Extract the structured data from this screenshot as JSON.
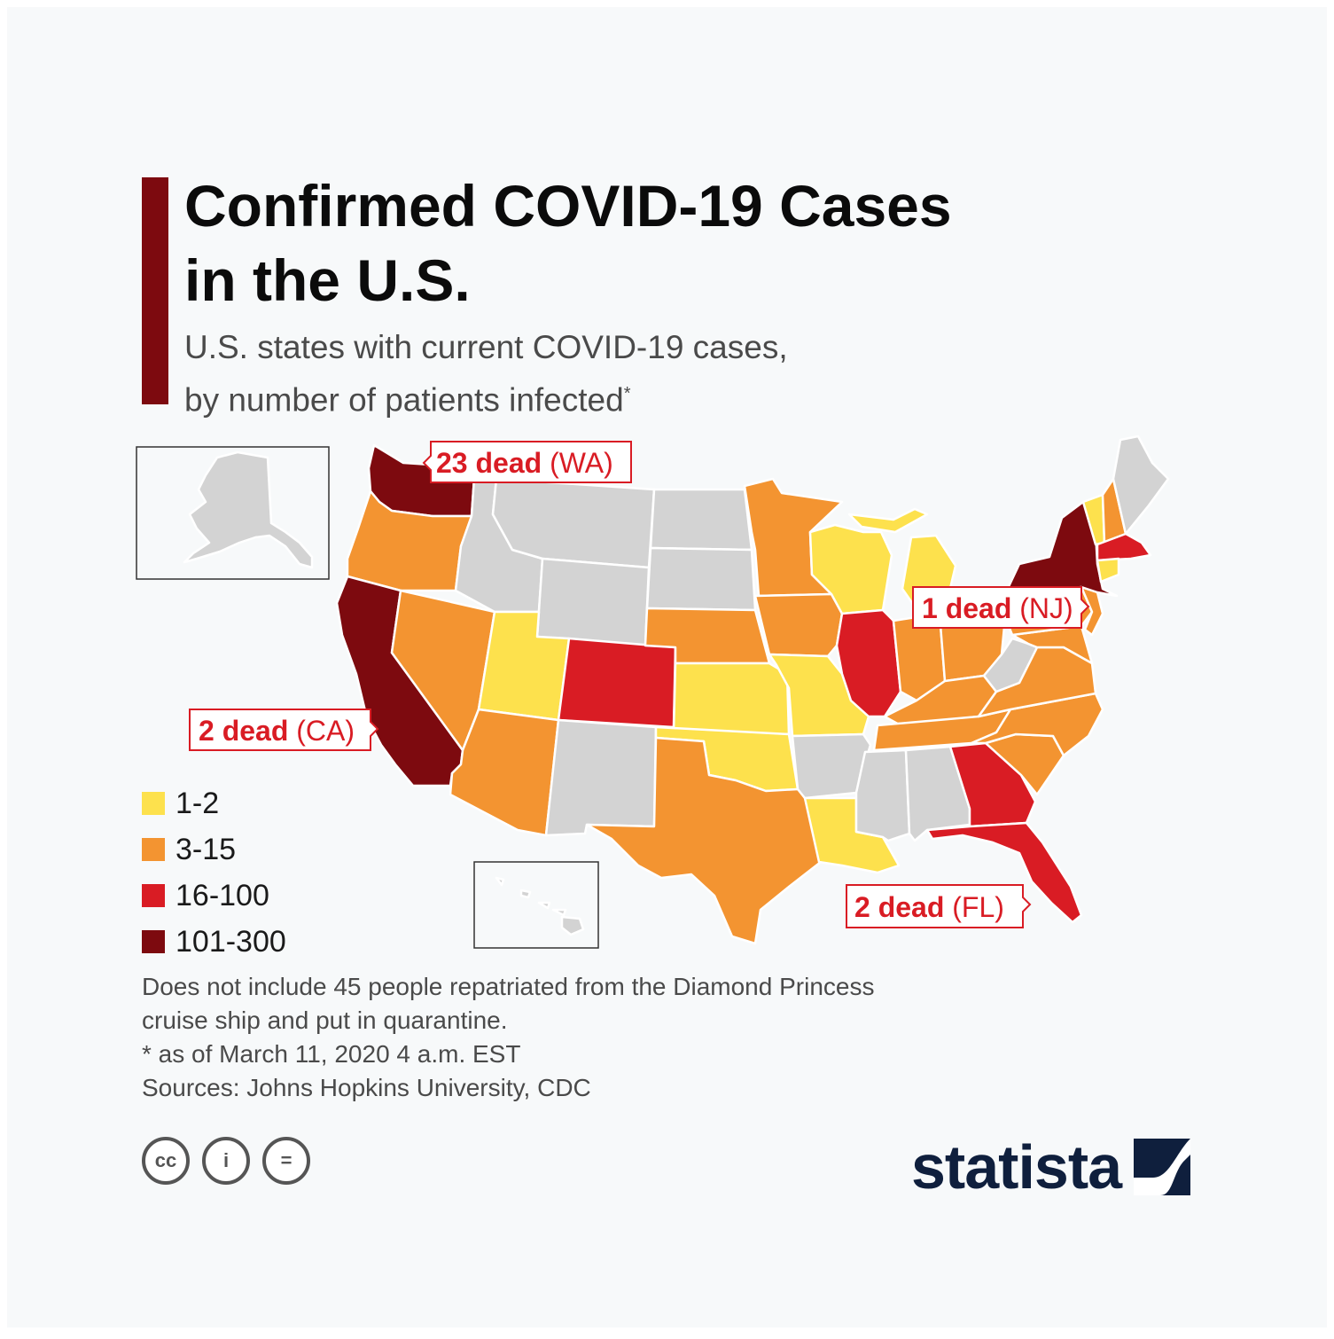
{
  "title": "Confirmed COVID-19 Cases in the U.S.",
  "subtitle_line1": "U.S. states with current COVID-19 cases,",
  "subtitle_line2": "by number of patients infected",
  "subtitle_mark": "*",
  "legend": [
    {
      "label": "1-2",
      "color": "#fde14d"
    },
    {
      "label": "3-15",
      "color": "#f39431"
    },
    {
      "label": "16-100",
      "color": "#d91c24"
    },
    {
      "label": "101-300",
      "color": "#7d0a0f"
    }
  ],
  "no_cases_color": "#d3d3d3",
  "callouts": {
    "wa": {
      "strong": "23 dead",
      "light": " (WA)"
    },
    "nj": {
      "strong": "1 dead",
      "light": " (NJ)"
    },
    "ca": {
      "strong": "2 dead",
      "light": " (CA)"
    },
    "fl": {
      "strong": "2 dead",
      "light": " (FL)"
    }
  },
  "states": {
    "WA": "101-300",
    "OR": "3-15",
    "CA": "101-300",
    "NV": "3-15",
    "ID": "none",
    "MT": "none",
    "WY": "none",
    "UT": "1-2",
    "AZ": "3-15",
    "CO": "16-100",
    "NM": "none",
    "ND": "none",
    "SD": "none",
    "NE": "3-15",
    "KS": "1-2",
    "OK": "1-2",
    "TX": "3-15",
    "MN": "3-15",
    "IA": "3-15",
    "MO": "1-2",
    "AR": "none",
    "LA": "1-2",
    "WI": "1-2",
    "IL": "16-100",
    "MI": "1-2",
    "IN": "3-15",
    "OH": "3-15",
    "KY": "3-15",
    "TN": "3-15",
    "MS": "none",
    "AL": "none",
    "GA": "16-100",
    "FL": "16-100",
    "SC": "3-15",
    "NC": "3-15",
    "VA": "3-15",
    "WV": "none",
    "PA": "3-15",
    "NY": "101-300",
    "VT": "1-2",
    "NH": "3-15",
    "ME": "none",
    "MA": "16-100",
    "CT": "1-2",
    "NJ": "3-15",
    "MD": "3-15",
    "AK": "none",
    "HI": "none"
  },
  "footnotes": [
    "Does not include 45 people repatriated from the Diamond Princess",
    "cruise ship and put in quarantine.",
    "* as of March 11, 2020 4 a.m. EST",
    "Sources: Johns Hopkins University, CDC"
  ],
  "license_icons": [
    "cc-icon",
    "person-icon",
    "equals-icon"
  ],
  "license_glyphs": [
    "cc",
    "i",
    "="
  ],
  "brand": "statista"
}
